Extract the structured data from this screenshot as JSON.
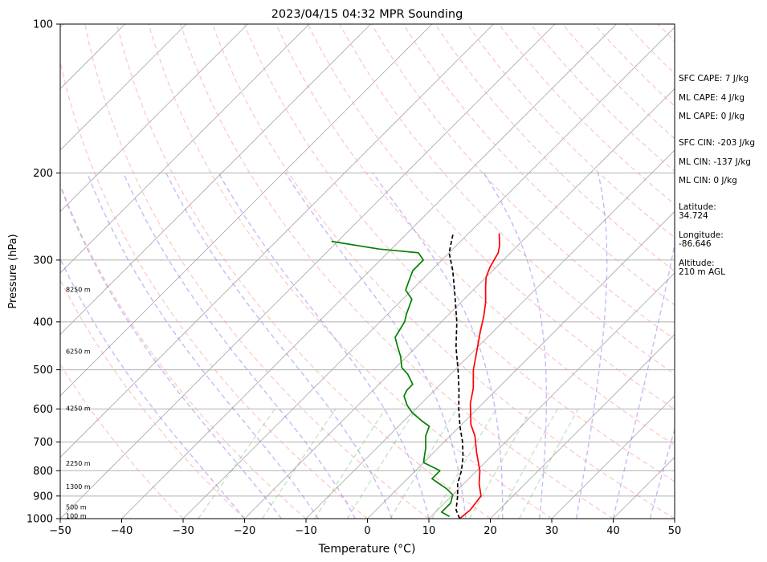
{
  "chart_data": {
    "type": "line",
    "title": "2023/04/15 04:32 MPR Sounding",
    "xlabel": "Temperature (°C)",
    "ylabel": "Pressure (hPa)",
    "xlim": [
      -50,
      50
    ],
    "ylim": [
      1000,
      100
    ],
    "y_scale": "log",
    "xticks": [
      -50,
      -40,
      -30,
      -20,
      -10,
      0,
      10,
      20,
      30,
      40,
      50
    ],
    "yticks": [
      1000,
      900,
      800,
      700,
      600,
      500,
      400,
      300,
      200,
      100
    ],
    "grid": "horizontal at pressure ticks; skewed isotherms every 10 °C",
    "series": [
      {
        "color": "#ff0000",
        "points": [
          [
            15,
            1000
          ],
          [
            15.3,
            960
          ],
          [
            14.8,
            900
          ],
          [
            12.5,
            850
          ],
          [
            10.5,
            800
          ],
          [
            7,
            735
          ],
          [
            4,
            680
          ],
          [
            1.5,
            645
          ],
          [
            -2,
            585
          ],
          [
            -4,
            545
          ],
          [
            -7,
            500
          ],
          [
            -10,
            450
          ],
          [
            -12,
            420
          ],
          [
            -14,
            390
          ],
          [
            -16,
            365
          ],
          [
            -18.5,
            340
          ],
          [
            -20,
            325
          ],
          [
            -21,
            310
          ],
          [
            -22,
            290
          ],
          [
            -23,
            280
          ],
          [
            -25,
            265
          ]
        ]
      },
      {
        "color": "#008000",
        "points": [
          [
            13,
            990
          ],
          [
            11,
            970
          ],
          [
            11,
            930
          ],
          [
            10,
            895
          ],
          [
            8,
            870
          ],
          [
            6,
            850
          ],
          [
            4,
            830
          ],
          [
            4,
            800
          ],
          [
            0,
            770
          ],
          [
            -1,
            745
          ],
          [
            -2,
            720
          ],
          [
            -3,
            700
          ],
          [
            -4,
            680
          ],
          [
            -5,
            650
          ],
          [
            -7,
            635
          ],
          [
            -10,
            610
          ],
          [
            -12,
            590
          ],
          [
            -14,
            565
          ],
          [
            -14.5,
            550
          ],
          [
            -14.5,
            535
          ],
          [
            -17,
            510
          ],
          [
            -19,
            495
          ],
          [
            -21,
            470
          ],
          [
            -23,
            450
          ],
          [
            -25,
            430
          ],
          [
            -26,
            400
          ],
          [
            -27,
            385
          ],
          [
            -28.5,
            360
          ],
          [
            -31,
            345
          ],
          [
            -32,
            330
          ],
          [
            -33,
            315
          ],
          [
            -33,
            300
          ],
          [
            -35,
            290
          ],
          [
            -42,
            285
          ],
          [
            -51,
            275
          ]
        ]
      },
      {
        "color": "#000000",
        "style": "dashed",
        "points": [
          [
            15,
            1000
          ],
          [
            13,
            960
          ],
          [
            11,
            900
          ],
          [
            9,
            850
          ],
          [
            7.5,
            800
          ],
          [
            5.5,
            750
          ],
          [
            3,
            700
          ],
          [
            0,
            650
          ],
          [
            -3,
            600
          ],
          [
            -6,
            550
          ],
          [
            -9.5,
            500
          ],
          [
            -13.5,
            450
          ],
          [
            -17.5,
            400
          ],
          [
            -22.5,
            350
          ],
          [
            -26.5,
            315
          ],
          [
            -30,
            290
          ],
          [
            -32.5,
            265
          ]
        ]
      }
    ],
    "height_labels": [
      {
        "text": "100 m",
        "pressure": 990
      },
      {
        "text": "500 m",
        "pressure": 950
      },
      {
        "text": "1300 m",
        "pressure": 865
      },
      {
        "text": "2250 m",
        "pressure": 775
      },
      {
        "text": "4250 m",
        "pressure": 600
      },
      {
        "text": "6250 m",
        "pressure": 460
      },
      {
        "text": "8250 m",
        "pressure": 345
      }
    ]
  },
  "info": {
    "sfc_cape": "SFC CAPE: 7 J/kg",
    "ml_cape": "ML CAPE: 4 J/kg",
    "ml_cape_2": "ML CAPE: 0 J/kg",
    "sfc_cin": "SFC CIN: -203 J/kg",
    "ml_cin": "ML CIN: -137 J/kg",
    "ml_cin_2": "ML CIN: 0 J/kg",
    "latitude_label": "Latitude:",
    "latitude_value": "34.724",
    "longitude_label": "Longitude:",
    "longitude_value": "-86.646",
    "altitude_label": "Altitude:",
    "altitude_value": "210 m AGL"
  }
}
